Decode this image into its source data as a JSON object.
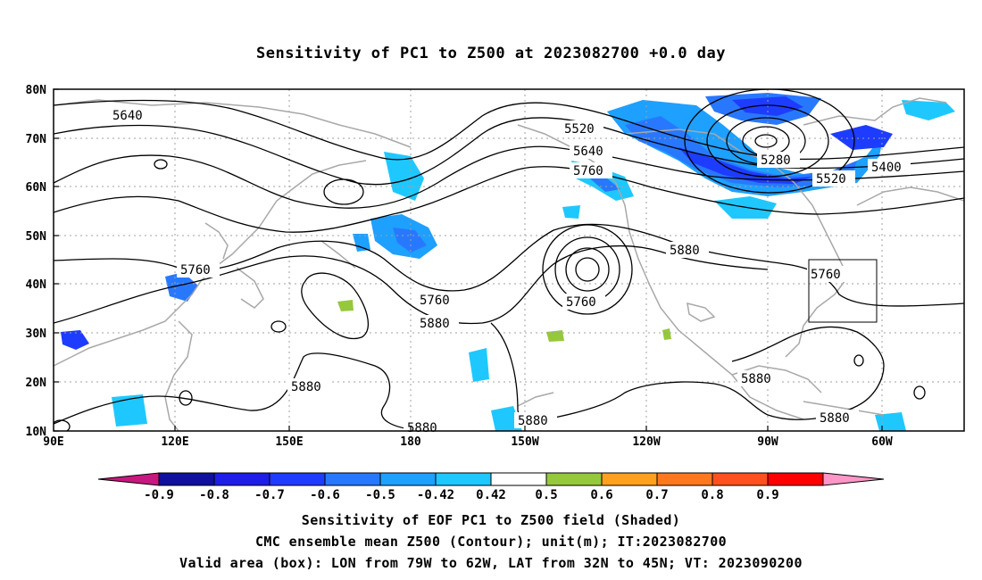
{
  "title": "Sensitivity of PC1 to Z500 at 2023082700 +0.0 day",
  "lat_labels": [
    "80N",
    "70N",
    "60N",
    "50N",
    "40N",
    "30N",
    "20N",
    "10N"
  ],
  "lon_labels": [
    "90E",
    "120E",
    "150E",
    "180",
    "150W",
    "120W",
    "90W",
    "60W"
  ],
  "contour_labels": {
    "c1": "5640",
    "c2": "5520",
    "c3": "5640",
    "c4": "5760",
    "c5": "5280",
    "c6": "5400",
    "c7": "5520",
    "c8": "5760",
    "c9": "5760",
    "c10": "5880",
    "c11": "5760",
    "c12": "5880",
    "c13": "5880",
    "c14": "5760",
    "c15": "5880",
    "c16": "5880",
    "c17": "5880",
    "c18": "5880"
  },
  "colorbar": {
    "levels": [
      "-0.9",
      "-0.8",
      "-0.7",
      "-0.6",
      "-0.5",
      "-0.42",
      "0.42",
      "0.5",
      "0.6",
      "0.7",
      "0.8",
      "0.9"
    ],
    "colors": [
      "#c8187f",
      "#0f0fa0",
      "#1e1ee6",
      "#1e3cff",
      "#2878ff",
      "#1ea0ff",
      "#1ec8ff",
      "#ffffff",
      "#96c83c",
      "#ffa01e",
      "#ff781e",
      "#ff501e",
      "#ff0000",
      "#ff96c8"
    ]
  },
  "valid_box": {
    "lon_from": "79W",
    "lon_to": "62W",
    "lat_from": "32N",
    "lat_to": "45N"
  },
  "captions": {
    "line1": "Sensitivity of EOF PC1 to Z500 field (Shaded)",
    "line2": "CMC ensemble mean Z500 (Contour); unit(m); IT:2023082700",
    "line3": "Valid area (box): LON from 79W to 62W, LAT from 32N to 45N; VT: 2023090200"
  }
}
